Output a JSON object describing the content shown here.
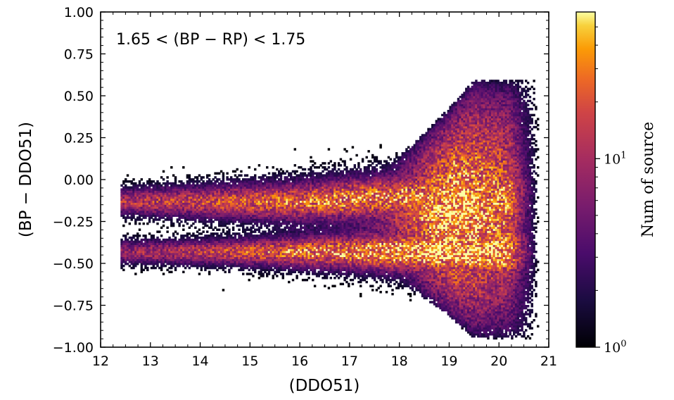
{
  "chart_data": {
    "type": "heatmap",
    "annotation": "1.65 < (BP − RP) < 1.75",
    "xlabel": "(DDO51)",
    "ylabel": "(BP − DDO51)",
    "xlim": [
      12,
      21
    ],
    "ylim": [
      -1.0,
      1.0
    ],
    "x_ticks": [
      12,
      13,
      14,
      15,
      16,
      17,
      18,
      19,
      20,
      21
    ],
    "x_tick_labels": [
      "12",
      "13",
      "14",
      "15",
      "16",
      "17",
      "18",
      "19",
      "20",
      "21"
    ],
    "y_ticks": [
      1.0,
      0.75,
      0.5,
      0.25,
      0.0,
      -0.25,
      -0.5,
      -0.75,
      -1.0
    ],
    "y_tick_labels": [
      "1.00",
      "0.75",
      "0.50",
      "0.25",
      "0.00",
      "−0.25",
      "−0.50",
      "−0.75",
      "−1.00"
    ],
    "colorbar": {
      "label": "Num of source",
      "scale": "log",
      "colormap": "inferno",
      "range": [
        1,
        60
      ],
      "ticks": [
        {
          "value": 1,
          "base": "10",
          "exp": "0"
        },
        {
          "value": 10,
          "base": "10",
          "exp": "1"
        }
      ]
    },
    "density_description": "2D histogram of source counts; two branches near (BP−DDO51)≈−0.12 and ≈−0.42 starting at DDO51≈12.5, merging and spreading into a broad fan between DDO51≈17 and 20.6; densest near DDO51≈19, (BP−DDO51)≈−0.42",
    "grid": false,
    "legend": "none"
  }
}
